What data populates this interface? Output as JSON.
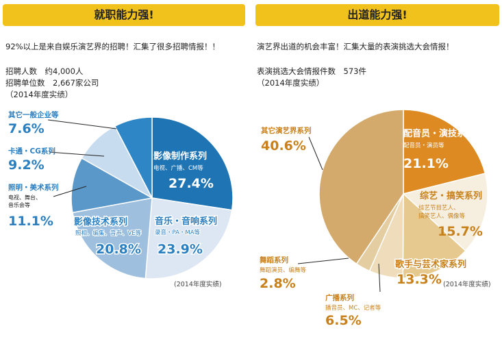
{
  "left": {
    "header": "就职能力强!",
    "intro": "92%以上是来自娱乐演艺界的招聘！汇集了很多招聘情报！！",
    "stat1": "招聘人数　约4,000人",
    "stat2": "招聘单位数　2,667家公司",
    "year": "（2014年度实绩）",
    "footnote": "(2014年度实绩)"
  },
  "right": {
    "header": "出道能力强!",
    "intro": "演艺界出道的机会丰富！汇集大量的表演挑选大会情报！",
    "stat1": "表演挑选大会情报件数　573件",
    "year": "（2014年度实绩）",
    "footnote": "(2014年度实绩)"
  },
  "colors": {
    "header_bg": "#f2c21c",
    "blue_text": "#2a7fc1",
    "orange_text": "#c8801a"
  },
  "chart_data": [
    {
      "type": "pie",
      "slices": [
        {
          "name": "影像制作系列",
          "sub": "电视、广播、CM等",
          "value": 27.4,
          "label": "27.4%",
          "color": "#1f74b4"
        },
        {
          "name": "音乐・音响系列",
          "sub": "录音・PA・MA等",
          "value": 23.9,
          "label": "23.9%",
          "color": "#dce7f3"
        },
        {
          "name": "影像技术系列",
          "sub": "照相、编集、音声、VE等",
          "value": 20.8,
          "label": "20.8%",
          "color": "#9fbfde"
        },
        {
          "name": "照明・美术系列",
          "sub": "电视、舞台、音乐会等",
          "value": 11.1,
          "label": "11.1%",
          "color": "#5a98c9"
        },
        {
          "name": "卡通・CG系列",
          "sub": "",
          "value": 9.2,
          "label": "9.2%",
          "color": "#c8dcef"
        },
        {
          "name": "其它一般企业等",
          "sub": "",
          "value": 7.6,
          "label": "7.6%",
          "color": "#2e86c6"
        }
      ]
    },
    {
      "type": "pie",
      "slices": [
        {
          "name": "配音员・演技系列",
          "sub": "配音员・演员等",
          "value": 21.1,
          "label": "21.1%",
          "color": "#dd8a22"
        },
        {
          "name": "综艺・搞笑系列",
          "sub": "综艺节目艺人、搞笑艺人、偶像等",
          "value": 15.7,
          "label": "15.7%",
          "color": "#f6efe0"
        },
        {
          "name": "歌手与芸术家系列",
          "sub": "",
          "value": 13.3,
          "label": "13.3%",
          "color": "#e6c98e"
        },
        {
          "name": "广播系列",
          "sub": "播音员、MC、记者等",
          "value": 6.5,
          "label": "6.5%",
          "color": "#efdcba"
        },
        {
          "name": "舞蹈系列",
          "sub": "舞蹈演员、编舞等",
          "value": 2.8,
          "label": "2.8%",
          "color": "#e4cda0"
        },
        {
          "name": "其它演艺界系列",
          "sub": "",
          "value": 40.6,
          "label": "40.6%",
          "color": "#d4a96c"
        }
      ]
    }
  ]
}
